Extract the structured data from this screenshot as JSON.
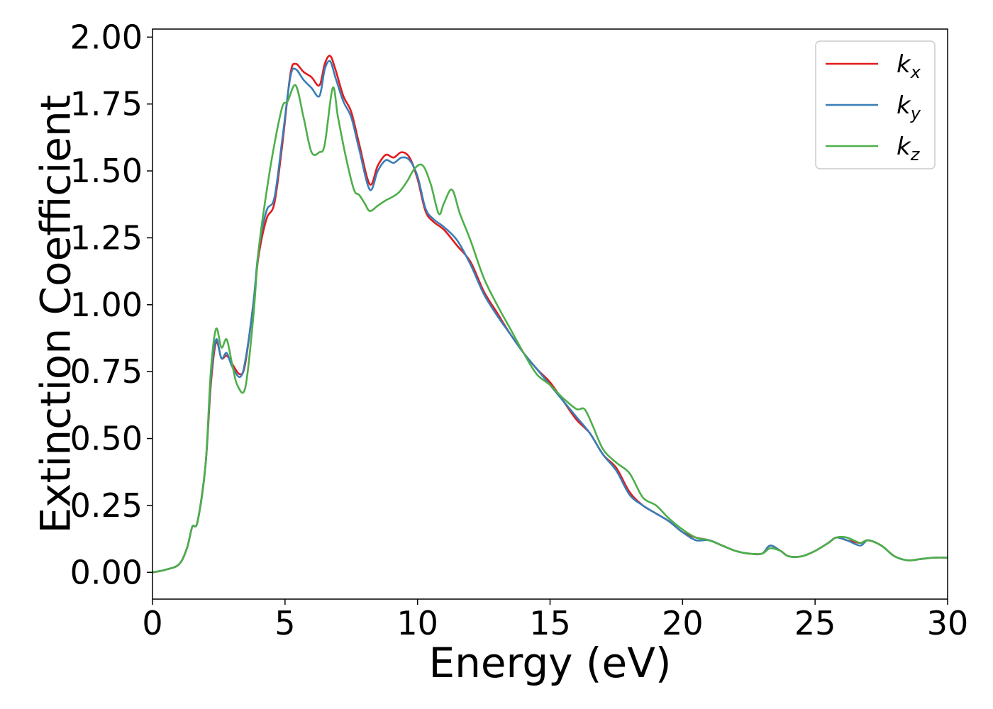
{
  "chart_data": {
    "type": "line",
    "xlabel": "Energy (eV)",
    "ylabel": "Extinction Coefficient",
    "xlim": [
      0,
      30
    ],
    "ylim": [
      -0.1,
      2.03
    ],
    "xticks": [
      0,
      5,
      10,
      15,
      20,
      25,
      30
    ],
    "xtick_labels": [
      "0",
      "5",
      "10",
      "15",
      "20",
      "25",
      "30"
    ],
    "yticks": [
      0,
      0.25,
      0.5,
      0.75,
      1.0,
      1.25,
      1.5,
      1.75,
      2.0
    ],
    "ytick_labels": [
      "0.00",
      "0.25",
      "0.50",
      "0.75",
      "1.00",
      "1.25",
      "1.50",
      "1.75",
      "2.00"
    ],
    "grid": false,
    "legend_position": "top-right",
    "series": [
      {
        "name": "k",
        "subscript": "x",
        "color": "#e41a1c",
        "x": [
          0,
          0.5,
          1.0,
          1.3,
          1.5,
          1.7,
          2.0,
          2.2,
          2.4,
          2.6,
          2.8,
          3.0,
          3.3,
          3.5,
          3.8,
          4.0,
          4.3,
          4.6,
          4.9,
          5.2,
          5.4,
          5.7,
          6.0,
          6.3,
          6.5,
          6.7,
          6.9,
          7.2,
          7.5,
          7.8,
          8.2,
          8.5,
          8.8,
          9.1,
          9.4,
          9.7,
          10.0,
          10.3,
          10.6,
          11.0,
          11.5,
          12.0,
          12.5,
          13.0,
          13.5,
          14.0,
          14.5,
          15.0,
          15.5,
          16.0,
          16.5,
          17.0,
          17.5,
          18.0,
          18.5,
          19.0,
          19.5,
          20.0,
          20.5,
          21.0,
          21.5,
          22.0,
          22.5,
          23.0,
          23.3,
          23.7,
          24.0,
          24.5,
          25.0,
          25.5,
          25.8,
          26.2,
          26.7,
          27.0,
          27.5,
          28.0,
          28.5,
          29.0,
          29.5,
          30.0
        ],
        "y": [
          0.0,
          0.01,
          0.03,
          0.09,
          0.17,
          0.19,
          0.4,
          0.7,
          0.86,
          0.8,
          0.81,
          0.78,
          0.74,
          0.78,
          1.0,
          1.18,
          1.32,
          1.38,
          1.6,
          1.86,
          1.9,
          1.87,
          1.85,
          1.82,
          1.9,
          1.93,
          1.88,
          1.78,
          1.72,
          1.6,
          1.45,
          1.52,
          1.56,
          1.55,
          1.57,
          1.55,
          1.47,
          1.35,
          1.31,
          1.28,
          1.22,
          1.16,
          1.05,
          0.97,
          0.89,
          0.82,
          0.76,
          0.71,
          0.64,
          0.57,
          0.52,
          0.44,
          0.39,
          0.3,
          0.25,
          0.22,
          0.19,
          0.15,
          0.13,
          0.12,
          0.1,
          0.08,
          0.07,
          0.07,
          0.1,
          0.08,
          0.06,
          0.06,
          0.08,
          0.11,
          0.13,
          0.12,
          0.11,
          0.12,
          0.1,
          0.06,
          0.045,
          0.05,
          0.055,
          0.055
        ]
      },
      {
        "name": "k",
        "subscript": "y",
        "color": "#377eb8",
        "x": [
          0,
          0.5,
          1.0,
          1.3,
          1.5,
          1.7,
          2.0,
          2.2,
          2.4,
          2.6,
          2.8,
          3.0,
          3.3,
          3.5,
          3.8,
          4.0,
          4.3,
          4.6,
          4.9,
          5.2,
          5.4,
          5.7,
          6.0,
          6.3,
          6.5,
          6.7,
          6.9,
          7.2,
          7.5,
          7.8,
          8.2,
          8.5,
          8.8,
          9.1,
          9.4,
          9.7,
          10.0,
          10.3,
          10.6,
          11.0,
          11.5,
          12.0,
          12.5,
          13.0,
          13.5,
          14.0,
          14.5,
          15.0,
          15.5,
          16.0,
          16.5,
          17.0,
          17.5,
          18.0,
          18.5,
          19.0,
          19.5,
          20.0,
          20.5,
          21.0,
          21.5,
          22.0,
          22.5,
          23.0,
          23.3,
          23.7,
          24.0,
          24.5,
          25.0,
          25.5,
          25.8,
          26.2,
          26.7,
          27.0,
          27.5,
          28.0,
          28.5,
          29.0,
          29.5,
          30.0
        ],
        "y": [
          0.0,
          0.01,
          0.03,
          0.09,
          0.17,
          0.19,
          0.4,
          0.72,
          0.87,
          0.8,
          0.82,
          0.77,
          0.73,
          0.79,
          1.0,
          1.2,
          1.35,
          1.4,
          1.62,
          1.85,
          1.88,
          1.84,
          1.81,
          1.78,
          1.88,
          1.91,
          1.85,
          1.76,
          1.7,
          1.58,
          1.43,
          1.5,
          1.54,
          1.53,
          1.55,
          1.54,
          1.48,
          1.36,
          1.32,
          1.29,
          1.24,
          1.15,
          1.04,
          0.96,
          0.89,
          0.82,
          0.76,
          0.7,
          0.64,
          0.58,
          0.52,
          0.44,
          0.38,
          0.29,
          0.25,
          0.22,
          0.19,
          0.15,
          0.12,
          0.12,
          0.1,
          0.08,
          0.07,
          0.07,
          0.1,
          0.08,
          0.06,
          0.06,
          0.08,
          0.11,
          0.13,
          0.12,
          0.1,
          0.12,
          0.1,
          0.06,
          0.045,
          0.05,
          0.055,
          0.055
        ]
      },
      {
        "name": "k",
        "subscript": "z",
        "color": "#4daf4a",
        "x": [
          0,
          0.5,
          1.0,
          1.3,
          1.5,
          1.7,
          2.0,
          2.2,
          2.4,
          2.6,
          2.8,
          3.0,
          3.2,
          3.5,
          3.8,
          4.0,
          4.3,
          4.6,
          4.9,
          5.1,
          5.4,
          5.7,
          6.0,
          6.3,
          6.5,
          6.8,
          7.0,
          7.3,
          7.6,
          7.8,
          8.0,
          8.2,
          8.5,
          8.8,
          9.0,
          9.3,
          9.6,
          9.9,
          10.2,
          10.5,
          10.8,
          11.0,
          11.3,
          11.6,
          12.0,
          12.5,
          13.0,
          13.5,
          14.0,
          14.5,
          15.0,
          15.5,
          16.0,
          16.3,
          16.6,
          17.0,
          17.5,
          18.0,
          18.5,
          19.0,
          19.5,
          20.0,
          20.5,
          21.0,
          21.5,
          22.0,
          22.5,
          23.0,
          23.3,
          23.7,
          24.0,
          24.5,
          25.0,
          25.5,
          25.8,
          26.2,
          26.7,
          27.0,
          27.5,
          28.0,
          28.5,
          29.0,
          29.5,
          30.0
        ],
        "y": [
          0.0,
          0.01,
          0.03,
          0.09,
          0.17,
          0.19,
          0.4,
          0.75,
          0.91,
          0.84,
          0.87,
          0.78,
          0.7,
          0.69,
          0.95,
          1.2,
          1.42,
          1.6,
          1.74,
          1.76,
          1.82,
          1.7,
          1.57,
          1.57,
          1.6,
          1.81,
          1.7,
          1.55,
          1.43,
          1.41,
          1.38,
          1.35,
          1.37,
          1.39,
          1.4,
          1.42,
          1.46,
          1.51,
          1.52,
          1.45,
          1.34,
          1.38,
          1.43,
          1.34,
          1.24,
          1.1,
          1.0,
          0.91,
          0.82,
          0.74,
          0.7,
          0.65,
          0.61,
          0.61,
          0.55,
          0.46,
          0.41,
          0.37,
          0.28,
          0.25,
          0.2,
          0.16,
          0.13,
          0.12,
          0.1,
          0.08,
          0.07,
          0.07,
          0.09,
          0.08,
          0.06,
          0.06,
          0.08,
          0.11,
          0.13,
          0.13,
          0.11,
          0.12,
          0.1,
          0.06,
          0.045,
          0.05,
          0.055,
          0.055
        ]
      }
    ]
  }
}
